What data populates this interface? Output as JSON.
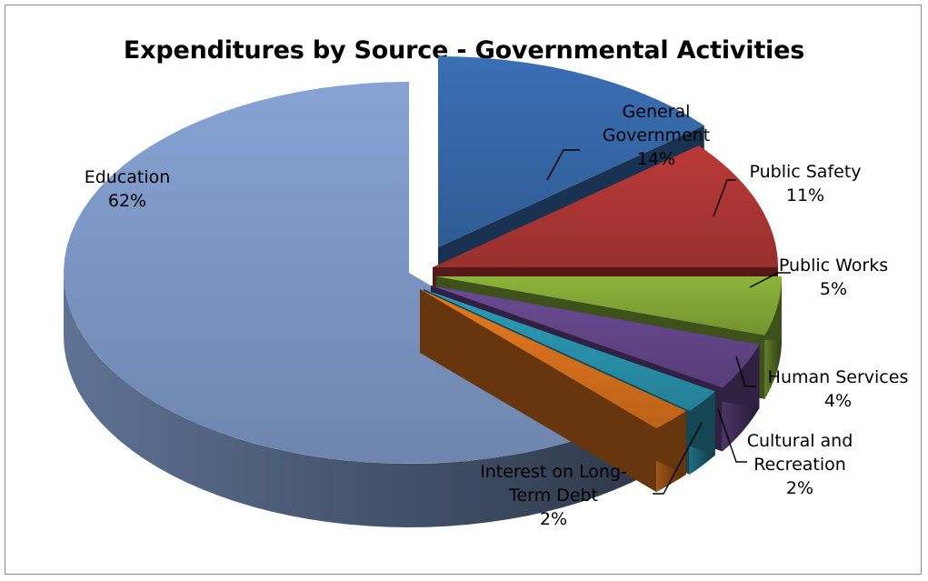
{
  "chart_data": {
    "type": "pie",
    "title": "Expenditures by Source - Governmental Activities",
    "slices": [
      {
        "label_lines": [
          "General",
          "Government",
          "14%"
        ],
        "value": 14,
        "color": "#3a6fb4"
      },
      {
        "label_lines": [
          "Public Safety",
          "11%"
        ],
        "value": 11,
        "color": "#b93a38"
      },
      {
        "label_lines": [
          "Public Works",
          "5%"
        ],
        "value": 5,
        "color": "#8db33b"
      },
      {
        "label_lines": [
          "Human Services",
          "4%"
        ],
        "value": 4,
        "color": "#6a4a92"
      },
      {
        "label_lines": [
          "Cultural and",
          "Recreation",
          "2%"
        ],
        "value": 2,
        "color": "#2c9cb8"
      },
      {
        "label_lines": [
          "Interest on Long-",
          "Term Debt",
          "2%"
        ],
        "value": 2,
        "color": "#e5791f"
      },
      {
        "label_lines": [
          "Education",
          "62%"
        ],
        "value": 62,
        "color": "#86a3d4"
      }
    ]
  }
}
